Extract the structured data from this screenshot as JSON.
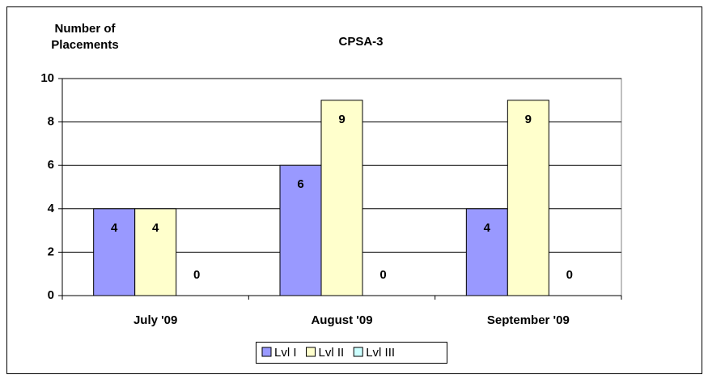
{
  "chart_data": {
    "type": "bar",
    "title": "CPSA-3",
    "y_label": "Number of Placements",
    "categories": [
      "July '09",
      "August '09",
      "September '09"
    ],
    "series": [
      {
        "name": "Lvl I",
        "color": "#9999ff",
        "values": [
          4,
          6,
          4
        ]
      },
      {
        "name": "Lvl II",
        "color": "#ffffcc",
        "values": [
          4,
          9,
          9
        ]
      },
      {
        "name": "Lvl III",
        "color": "#ccffff",
        "values": [
          0,
          0,
          0
        ]
      }
    ],
    "ylim": [
      0,
      10
    ],
    "yticks": [
      0,
      2,
      4,
      6,
      8,
      10
    ],
    "grid": true,
    "legend": "bottom"
  }
}
